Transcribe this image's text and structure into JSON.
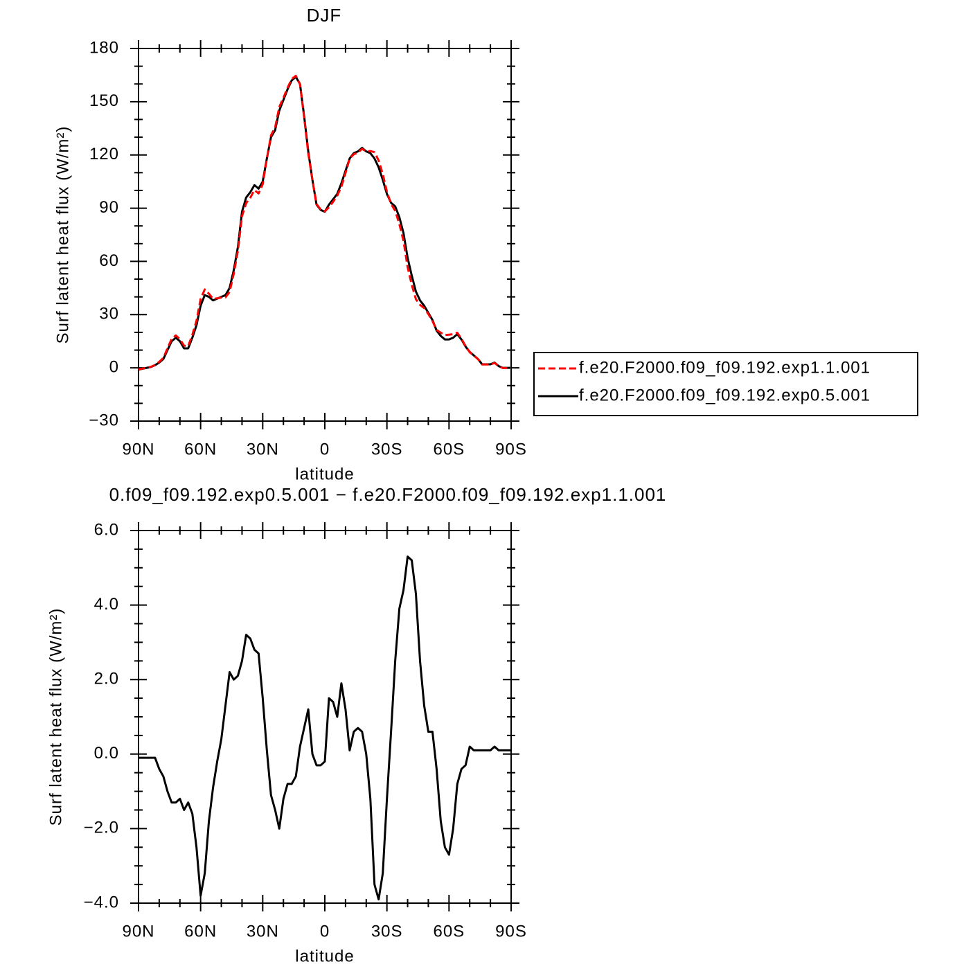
{
  "chart_data": [
    {
      "type": "line",
      "title": "DJF",
      "xlabel": "latitude",
      "ylabel": "Surf latent heat flux (W/m²)",
      "xlim": [
        90,
        -90
      ],
      "xticks": [
        {
          "value": 90,
          "label": "90N"
        },
        {
          "value": 60,
          "label": "60N"
        },
        {
          "value": 30,
          "label": "30N"
        },
        0,
        {
          "value": -30,
          "label": "30S"
        },
        {
          "value": -60,
          "label": "60S"
        },
        {
          "value": -90,
          "label": "90S"
        }
      ],
      "ylim": [
        -30,
        180
      ],
      "yticks": [
        {
          "value": -30,
          "label": "−30"
        },
        0,
        30,
        60,
        90,
        120,
        150,
        180
      ],
      "legend": "right",
      "x": [
        90,
        88,
        86,
        84,
        82,
        80,
        78,
        76,
        74,
        72,
        70,
        68,
        66,
        64,
        62,
        60,
        58,
        56,
        54,
        52,
        50,
        48,
        46,
        44,
        42,
        40,
        38,
        36,
        34,
        32,
        30,
        28,
        26,
        24,
        22,
        20,
        18,
        16,
        14,
        12,
        10,
        8,
        6,
        4,
        2,
        0,
        -2,
        -4,
        -6,
        -8,
        -10,
        -12,
        -14,
        -16,
        -18,
        -20,
        -22,
        -24,
        -26,
        -28,
        -30,
        -32,
        -34,
        -36,
        -38,
        -40,
        -42,
        -44,
        -46,
        -48,
        -50,
        -52,
        -54,
        -56,
        -58,
        -60,
        -62,
        -64,
        -66,
        -68,
        -70,
        -72,
        -74,
        -76,
        -78,
        -80,
        -82,
        -84,
        -86,
        -88,
        -90
      ],
      "series": [
        {
          "name": "f.e20.F2000.f09_f09.192.exp1.1.001",
          "color": "#ff0000",
          "line_style": "dashed",
          "values": [
            -0.9,
            -0.4,
            0.1,
            0.6,
            1.6,
            3.4,
            5.6,
            11,
            16.3,
            18.3,
            16.2,
            12.5,
            12.3,
            18.6,
            26.5,
            38.8,
            44.2,
            41.8,
            38.9,
            39.2,
            39.6,
            39.7,
            42.8,
            53,
            65.9,
            85.5,
            92.8,
            95.9,
            100.2,
            98.3,
            103.5,
            117.9,
            131.1,
            135.5,
            147,
            152.2,
            157.8,
            162.8,
            164.6,
            159.8,
            141.3,
            120.8,
            106,
            92.3,
            89.3,
            88.2,
            90.5,
            93.6,
            97,
            102.1,
            109.8,
            117.9,
            120.4,
            121.3,
            123.4,
            122,
            122.2,
            121.5,
            116.9,
            109.2,
            99.2,
            92.4,
            88.5,
            81.1,
            71.6,
            56.7,
            46.8,
            38.7,
            35.5,
            33.7,
            30.4,
            26.4,
            21.4,
            19.8,
            18.5,
            18.7,
            19,
            19.8,
            16.4,
            12.3,
            8.8,
            6.9,
            4.9,
            1.9,
            1.9,
            1.9,
            2.8,
            0.9,
            -0.1,
            -0.1,
            -0.1
          ]
        },
        {
          "name": "f.e20.F2000.f09_f09.192.exp0.5.001",
          "color": "#000000",
          "line_style": "solid",
          "values": [
            -1,
            -0.5,
            0,
            0.5,
            1.5,
            3,
            5,
            10,
            15,
            17,
            15,
            11,
            11,
            17,
            24,
            35,
            41,
            40,
            38,
            39,
            40,
            41,
            45,
            55,
            68,
            88,
            96,
            99,
            103,
            101,
            105,
            118,
            130,
            134,
            145,
            151,
            157,
            162,
            164,
            160,
            142,
            122,
            106,
            92,
            89,
            88,
            92,
            95,
            98,
            104,
            111,
            118,
            121,
            122,
            124,
            122,
            121,
            118,
            113,
            106,
            98,
            93,
            91,
            85,
            76,
            62,
            52,
            43,
            38,
            35,
            31,
            27,
            21,
            18,
            16,
            16,
            17,
            19,
            16,
            12,
            9,
            7,
            5,
            2,
            2,
            2,
            3,
            1,
            0,
            0,
            0
          ]
        }
      ]
    },
    {
      "type": "line",
      "title": "0.f09_f09.192.exp0.5.001 − f.e20.F2000.f09_f09.192.exp1.1.001",
      "xlabel": "latitude",
      "ylabel": "Surf latent heat flux (W/m²)",
      "xlim": [
        90,
        -90
      ],
      "xticks": [
        {
          "value": 90,
          "label": "90N"
        },
        {
          "value": 60,
          "label": "60N"
        },
        {
          "value": 30,
          "label": "30N"
        },
        0,
        {
          "value": -30,
          "label": "30S"
        },
        {
          "value": -60,
          "label": "60S"
        },
        {
          "value": -90,
          "label": "90S"
        }
      ],
      "ylim": [
        -4,
        6
      ],
      "yticks": [
        {
          "value": -4,
          "label": "−4.0"
        },
        {
          "value": -2,
          "label": "−2.0"
        },
        {
          "value": 0,
          "label": "0.0"
        },
        {
          "value": 2,
          "label": "2.0"
        },
        {
          "value": 4,
          "label": "4.0"
        },
        {
          "value": 6,
          "label": "6.0"
        }
      ],
      "color": "#000000",
      "x": [
        90,
        88,
        86,
        84,
        82,
        80,
        78,
        76,
        74,
        72,
        70,
        68,
        66,
        64,
        62,
        60,
        58,
        56,
        54,
        52,
        50,
        48,
        46,
        44,
        42,
        40,
        38,
        36,
        34,
        32,
        30,
        28,
        26,
        24,
        22,
        20,
        18,
        16,
        14,
        12,
        10,
        8,
        6,
        4,
        2,
        0,
        -2,
        -4,
        -6,
        -8,
        -10,
        -12,
        -14,
        -16,
        -18,
        -20,
        -22,
        -24,
        -26,
        -28,
        -30,
        -32,
        -34,
        -36,
        -38,
        -40,
        -42,
        -44,
        -46,
        -48,
        -50,
        -52,
        -54,
        -56,
        -58,
        -60,
        -62,
        -64,
        -66,
        -68,
        -70,
        -72,
        -74,
        -76,
        -78,
        -80,
        -82,
        -84,
        -86,
        -88,
        -90
      ],
      "values": [
        -0.1,
        -0.1,
        -0.1,
        -0.1,
        -0.1,
        -0.4,
        -0.6,
        -1,
        -1.3,
        -1.3,
        -1.2,
        -1.5,
        -1.3,
        -1.6,
        -2.5,
        -3.8,
        -3.2,
        -1.8,
        -0.9,
        -0.2,
        0.4,
        1.3,
        2.2,
        2,
        2.1,
        2.5,
        3.2,
        3.1,
        2.8,
        2.7,
        1.5,
        0.1,
        -1.1,
        -1.5,
        -2,
        -1.2,
        -0.8,
        -0.8,
        -0.6,
        0.2,
        0.7,
        1.2,
        0,
        -0.3,
        -0.3,
        -0.2,
        1.5,
        1.4,
        1,
        1.9,
        1.2,
        0.1,
        0.6,
        0.7,
        0.6,
        0,
        -1.2,
        -3.5,
        -3.9,
        -3.2,
        -1.2,
        0.6,
        2.5,
        3.9,
        4.4,
        5.3,
        5.2,
        4.3,
        2.5,
        1.3,
        0.6,
        0.6,
        -0.4,
        -1.8,
        -2.5,
        -2.7,
        -2,
        -0.8,
        -0.4,
        -0.3,
        0.2,
        0.1,
        0.1,
        0.1,
        0.1,
        0.1,
        0.2,
        0.1,
        0.1,
        0.1,
        0.1
      ]
    }
  ]
}
